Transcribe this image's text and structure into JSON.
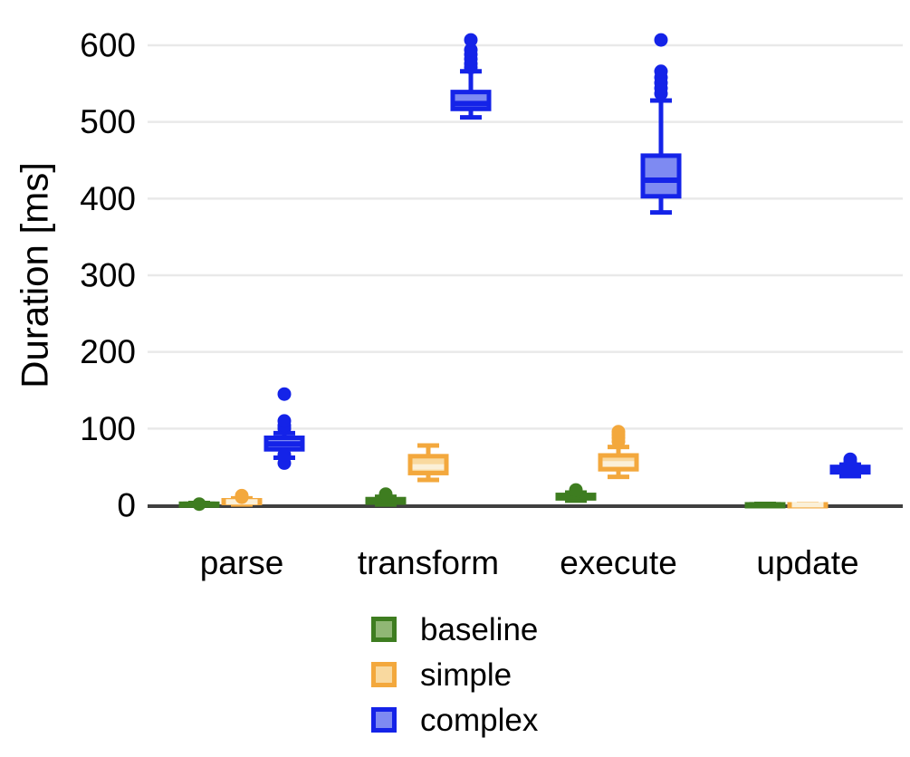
{
  "chart_data": {
    "type": "boxplot",
    "title": "",
    "xlabel": "",
    "ylabel": "Duration [ms]",
    "ylim": [
      0,
      620
    ],
    "yticks": [
      0,
      100,
      200,
      300,
      400,
      500,
      600
    ],
    "grid": true,
    "legend_position": "bottom",
    "categories": [
      "parse",
      "transform",
      "execute",
      "update"
    ],
    "series": [
      {
        "name": "baseline",
        "stroke": "#3e7d20",
        "fill": "#90b775",
        "median_color": "#3e7d20",
        "boxes": [
          {
            "min": 0.3,
            "q1": 0.8,
            "med": 1.3,
            "q3": 2.0,
            "max": 3.0,
            "outliers": [
              1.5
            ]
          },
          {
            "min": 1.0,
            "q1": 3.5,
            "med": 5.5,
            "q3": 8.0,
            "max": 11.0,
            "outliers": [
              12.5,
              14.5
            ]
          },
          {
            "min": 6.0,
            "q1": 9.0,
            "med": 11.0,
            "q3": 13.5,
            "max": 16.5,
            "outliers": [
              18,
              20
            ]
          },
          {
            "min": 0.2,
            "q1": 0.5,
            "med": 0.8,
            "q3": 1.2,
            "max": 1.8,
            "outliers": []
          }
        ]
      },
      {
        "name": "simple",
        "stroke": "#f3a83d",
        "fill": "#f9d99f",
        "median_color": "#fbf0d8",
        "boxes": [
          {
            "min": 1.0,
            "q1": 3.0,
            "med": 4.5,
            "q3": 6.5,
            "max": 9.0,
            "outliers": [
              10.5,
              12.5
            ]
          },
          {
            "min": 33,
            "q1": 42,
            "med": 50,
            "q3": 64,
            "max": 78,
            "outliers": []
          },
          {
            "min": 37,
            "q1": 47,
            "med": 54,
            "q3": 65,
            "max": 76,
            "outliers": [
              83,
              88,
              92,
              96
            ]
          },
          {
            "min": 0.2,
            "q1": 0.5,
            "med": 0.8,
            "q3": 1.2,
            "max": 1.8,
            "outliers": []
          }
        ]
      },
      {
        "name": "complex",
        "stroke": "#1423e8",
        "fill": "#7e8af2",
        "median_color": "#1423e8",
        "boxes": [
          {
            "min": 62,
            "q1": 73,
            "med": 80,
            "q3": 88,
            "max": 94,
            "outliers": [
              55,
              66,
              100,
              104,
              110,
              145
            ]
          },
          {
            "min": 506,
            "q1": 517,
            "med": 524,
            "q3": 539,
            "max": 566,
            "outliers": [
              571,
              576,
              582,
              588,
              594,
              607
            ]
          },
          {
            "min": 382,
            "q1": 403,
            "med": 424,
            "q3": 456,
            "max": 528,
            "outliers": [
              537,
              544,
              551,
              558,
              566,
              607
            ]
          },
          {
            "min": 38,
            "q1": 43,
            "med": 46,
            "q3": 50,
            "max": 53,
            "outliers": [
              56,
              60
            ]
          }
        ]
      }
    ],
    "colors": {
      "background": "#ffffff",
      "gridline": "#e9e9e9",
      "axis_line": "#3f3f3f",
      "text": "#000000"
    }
  }
}
